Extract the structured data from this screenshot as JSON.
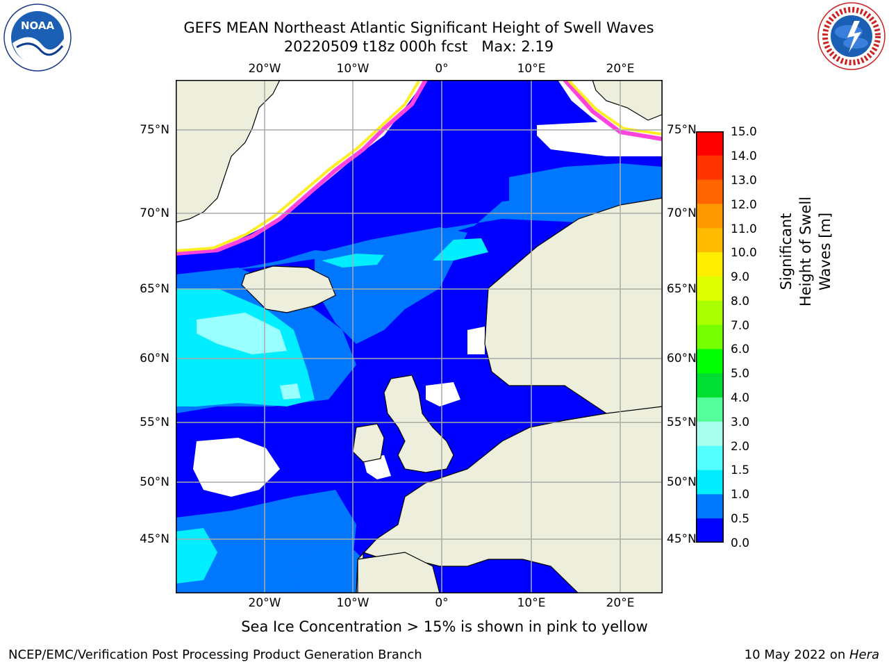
{
  "title": {
    "line1": "GEFS MEAN Northeast Atlantic Significant Height of Swell Waves",
    "line2": "20220509 t18z 000h fcst   Max: 2.19"
  },
  "logos": {
    "left": {
      "name": "noaa-logo",
      "text": "NOAA",
      "ring_text": "NATIONAL OCEANIC AND ATMOSPHERIC ADMINISTRATION · U.S. DEPARTMENT OF COMMERCE"
    },
    "right": {
      "name": "nws-logo",
      "ring_text": "NATIONAL WEATHER SERVICE"
    }
  },
  "map": {
    "lon_labels": [
      "20°W",
      "10°W",
      "0°",
      "10°E",
      "20°E"
    ],
    "lat_labels": [
      "75°N",
      "70°N",
      "65°N",
      "60°N",
      "55°N",
      "50°N",
      "45°N"
    ],
    "colors": {
      "ocean_low": "#0000ff",
      "ocean_mid": "#0077ff",
      "ocean_high": "#00eeff",
      "ocean_peak": "#99ffff",
      "land": "#eeeedd",
      "grid": "#aaaaaa",
      "ice_pink": "#ff44dd",
      "ice_yellow": "#ffee22"
    }
  },
  "colorbar": {
    "label": "Significant Height of Swell Waves [m]",
    "ticks": [
      "15.0",
      "14.0",
      "13.0",
      "12.0",
      "11.0",
      "10.0",
      "9.0",
      "8.0",
      "7.0",
      "6.0",
      "5.0",
      "4.0",
      "3.0",
      "2.0",
      "1.5",
      "1.0",
      "0.5",
      "0.0"
    ],
    "colors": [
      "#ff0000",
      "#ff3300",
      "#ff6600",
      "#ff9900",
      "#ffbb00",
      "#ffee00",
      "#ddff00",
      "#aaff00",
      "#77ff00",
      "#00ff00",
      "#00dd33",
      "#55ff99",
      "#aaffee",
      "#55ffff",
      "#00eeff",
      "#0077ff",
      "#0000ff"
    ]
  },
  "caption": "Sea Ice Concentration > 15% is shown in pink to yellow",
  "footer": {
    "left": "NCEP/EMC/Verification Post Processing Product Generation Branch",
    "right_prefix": "10 May 2022 on ",
    "right_italic": "Hera"
  }
}
